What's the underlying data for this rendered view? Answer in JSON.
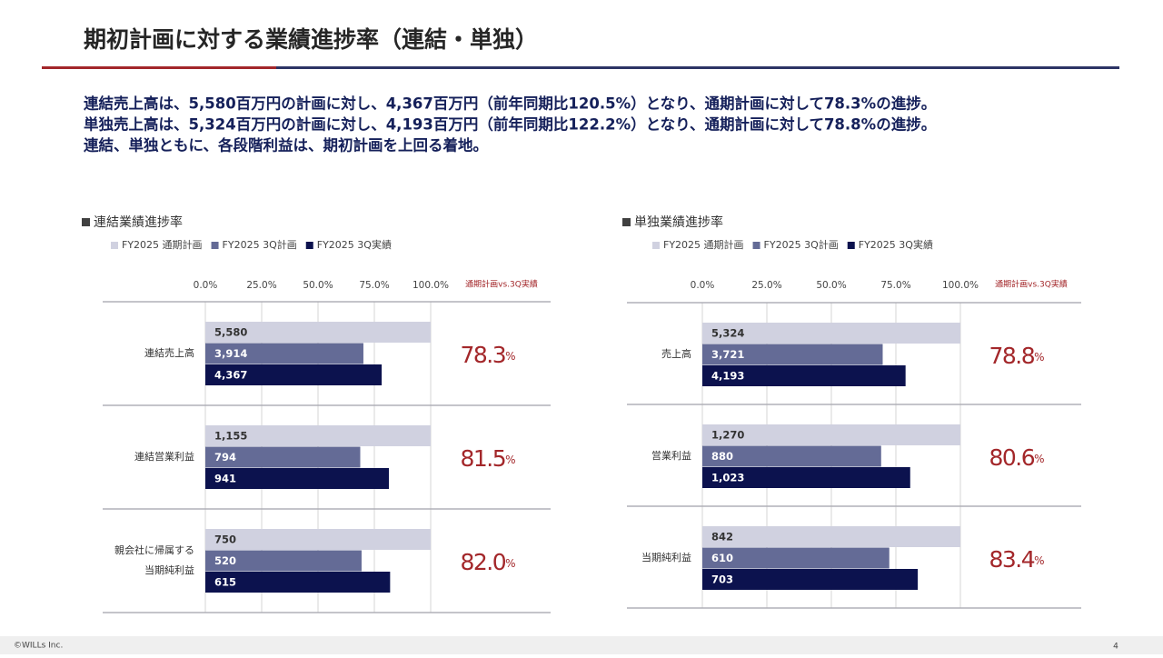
{
  "header": {
    "title": "期初計画に対する業績進捗率（連結・単独）"
  },
  "summary": [
    "連結売上高は、5,580百万円の計画に対し、4,367百万円（前年同期比120.5%）となり、通期計画に対して78.3%の進捗。",
    "単独売上高は、5,324百万円の計画に対し、4,193百万円（前年同期比122.2%）となり、通期計画に対して78.8%の進捗。",
    "連結、単独ともに、各段階利益は、期初計画を上回る着地。"
  ],
  "footer": {
    "copyright": "©WILLs Inc.",
    "page": "4"
  },
  "chart_data": [
    {
      "type": "bar",
      "orientation": "horizontal",
      "title": "連結業績進捗率",
      "categories": [
        [
          "連結売上高"
        ],
        [
          "連結営業利益"
        ],
        [
          "親会社に帰属する",
          "当期純利益"
        ]
      ],
      "series": [
        {
          "name": "FY2025 通期計画",
          "color": "#d0d1e0",
          "values": [
            5580,
            1155,
            750
          ],
          "value_labels": [
            "5,580",
            "1,155",
            "750"
          ]
        },
        {
          "name": "FY2025 3Q計画",
          "color": "#646b96",
          "values": [
            3914,
            794,
            520
          ],
          "value_labels": [
            "3,914",
            "794",
            "520"
          ]
        },
        {
          "name": "FY2025 3Q実績",
          "color": "#0c124e",
          "values": [
            4367,
            941,
            615
          ],
          "value_labels": [
            "4,367",
            "941",
            "615"
          ]
        }
      ],
      "xlim": [
        0,
        100
      ],
      "xticks": [
        {
          "value": 0,
          "label": "0.0%"
        },
        {
          "value": 25,
          "label": "25.0%"
        },
        {
          "value": 50,
          "label": "50.0%"
        },
        {
          "value": 75,
          "label": "75.0%"
        },
        {
          "value": 100,
          "label": "100.0%"
        }
      ],
      "grid": true,
      "progress_header": "通期計画vs.3Q実績",
      "progress": [
        {
          "value": 78.3,
          "label": "78.3"
        },
        {
          "value": 81.5,
          "label": "81.5"
        },
        {
          "value": 82.0,
          "label": "82.0"
        }
      ],
      "progress_unit": "%",
      "progress_color": "#a3272a"
    },
    {
      "type": "bar",
      "orientation": "horizontal",
      "title": "単独業績進捗率",
      "categories": [
        [
          "売上高"
        ],
        [
          "営業利益"
        ],
        [
          "当期純利益"
        ]
      ],
      "series": [
        {
          "name": "FY2025 通期計画",
          "color": "#d0d1e0",
          "values": [
            5324,
            1270,
            842
          ],
          "value_labels": [
            "5,324",
            "1,270",
            "842"
          ]
        },
        {
          "name": "FY2025 3Q計画",
          "color": "#646b96",
          "values": [
            3721,
            880,
            610
          ],
          "value_labels": [
            "3,721",
            "880",
            "610"
          ]
        },
        {
          "name": "FY2025 3Q実績",
          "color": "#0c124e",
          "values": [
            4193,
            1023,
            703
          ],
          "value_labels": [
            "4,193",
            "1,023",
            "703"
          ]
        }
      ],
      "xlim": [
        0,
        100
      ],
      "xticks": [
        {
          "value": 0,
          "label": "0.0%"
        },
        {
          "value": 25,
          "label": "25.0%"
        },
        {
          "value": 50,
          "label": "50.0%"
        },
        {
          "value": 75,
          "label": "75.0%"
        },
        {
          "value": 100,
          "label": "100.0%"
        }
      ],
      "grid": true,
      "progress_header": "通期計画vs.3Q実績",
      "progress": [
        {
          "value": 78.8,
          "label": "78.8"
        },
        {
          "value": 80.6,
          "label": "80.6"
        },
        {
          "value": 83.4,
          "label": "83.4"
        }
      ],
      "progress_unit": "%",
      "progress_color": "#a3272a"
    }
  ]
}
